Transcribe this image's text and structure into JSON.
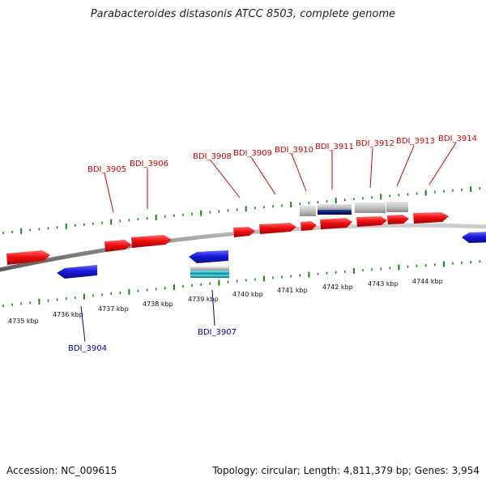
{
  "header": {
    "title": "Parabacteroides distasonis ATCC 8503, complete genome"
  },
  "footer": {
    "accession": "Accession: NC_009615",
    "summary": "Topology: circular; Length: 4,811,379 bp; Genes: 3,954"
  },
  "colors": {
    "forward_gene": "#ee1111",
    "reverse_gene": "#1a1add",
    "pseudo_gene": "#c0c0c0",
    "dark_gene": "#0a1a7a",
    "rna_gene": "#20b8c8",
    "tick": "#118811",
    "backbone": "#888888",
    "forward_label": "#cc0000",
    "reverse_label": "#0000aa"
  },
  "kbp_ticks": [
    {
      "label": "4735 kbp"
    },
    {
      "label": "4736 kbp"
    },
    {
      "label": "4737 kbp"
    },
    {
      "label": "4738 kbp"
    },
    {
      "label": "4739 kbp"
    },
    {
      "label": "4740 kbp"
    },
    {
      "label": "4741 kbp"
    },
    {
      "label": "4742 kbp"
    },
    {
      "label": "4743 kbp"
    },
    {
      "label": "4744 kbp"
    }
  ],
  "gene_labels": [
    {
      "text": "BDI_3905",
      "strand": "forward"
    },
    {
      "text": "BDI_3906",
      "strand": "forward"
    },
    {
      "text": "BDI_3908",
      "strand": "forward"
    },
    {
      "text": "BDI_3909",
      "strand": "forward"
    },
    {
      "text": "BDI_3910",
      "strand": "forward"
    },
    {
      "text": "BDI_3911",
      "strand": "forward"
    },
    {
      "text": "BDI_3912",
      "strand": "forward"
    },
    {
      "text": "BDI_3913",
      "strand": "forward"
    },
    {
      "text": "BDI_3914",
      "strand": "forward"
    },
    {
      "text": "BDI_3904",
      "strand": "reverse"
    },
    {
      "text": "BDI_3907",
      "strand": "reverse"
    }
  ]
}
